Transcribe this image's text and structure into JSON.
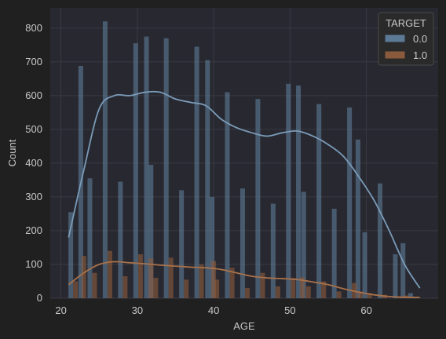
{
  "chart_data": {
    "type": "bar",
    "xlabel": "AGE",
    "ylabel": "Count",
    "xlim": [
      18.6,
      69.4
    ],
    "ylim": [
      0,
      860
    ],
    "x_ticks": [
      20,
      30,
      40,
      50,
      60
    ],
    "y_ticks": [
      0,
      100,
      200,
      300,
      400,
      500,
      600,
      700,
      800
    ],
    "grid": true,
    "legend": {
      "title": "TARGET",
      "placement": "top-right",
      "entries": [
        "0.0",
        "1.0"
      ]
    },
    "bin_centers": [
      21.6,
      24.1,
      26.1,
      28.1,
      30.1,
      32.1,
      34.1,
      36.1,
      38.1,
      40.1,
      42.1,
      44.1,
      46.1,
      48.1,
      50.1,
      52.1,
      54.1,
      56.1,
      58.1,
      60.1,
      62.1,
      64.1,
      66.1
    ],
    "series": [
      {
        "name": "0.0",
        "color": "#5c7a95",
        "values": [
          255,
          355,
          820,
          345,
          755,
          395,
          770,
          320,
          745,
          300,
          610,
          325,
          590,
          280,
          635,
          315,
          575,
          265,
          565,
          195,
          340,
          130,
          15
        ],
        "extra_bars": [
          {
            "x": 22.6,
            "value": 688
          },
          {
            "x": 31.2,
            "value": 775
          },
          {
            "x": 39.2,
            "value": 705
          },
          {
            "x": 51.1,
            "value": 630
          },
          {
            "x": 58.9,
            "value": 470
          },
          {
            "x": 64.8,
            "value": 163
          }
        ],
        "kde": [
          [
            21,
            180
          ],
          [
            23,
            380
          ],
          [
            25,
            560
          ],
          [
            27,
            600
          ],
          [
            29,
            600
          ],
          [
            31,
            610
          ],
          [
            33,
            610
          ],
          [
            35,
            590
          ],
          [
            37,
            580
          ],
          [
            39,
            570
          ],
          [
            41,
            530
          ],
          [
            43,
            505
          ],
          [
            45,
            490
          ],
          [
            47,
            480
          ],
          [
            49,
            490
          ],
          [
            51,
            495
          ],
          [
            53,
            480
          ],
          [
            55,
            455
          ],
          [
            57,
            420
          ],
          [
            59,
            360
          ],
          [
            61,
            290
          ],
          [
            63,
            200
          ],
          [
            65,
            100
          ],
          [
            67,
            30
          ]
        ]
      },
      {
        "name": "1.0",
        "color": "#8a5a3c",
        "values": [
          50,
          75,
          140,
          65,
          130,
          60,
          120,
          55,
          100,
          55,
          90,
          30,
          75,
          35,
          60,
          35,
          50,
          20,
          45,
          15,
          10,
          5,
          3
        ],
        "extra_bars": [
          {
            "x": 23.0,
            "value": 125
          },
          {
            "x": 31.8,
            "value": 118
          },
          {
            "x": 40.0,
            "value": 110
          },
          {
            "x": 51.6,
            "value": 62
          },
          {
            "x": 59.2,
            "value": 20
          },
          {
            "x": 65.2,
            "value": 8
          }
        ],
        "kde": [
          [
            21,
            40
          ],
          [
            23,
            75
          ],
          [
            25,
            100
          ],
          [
            27,
            108
          ],
          [
            29,
            105
          ],
          [
            31,
            102
          ],
          [
            33,
            98
          ],
          [
            35,
            95
          ],
          [
            37,
            92
          ],
          [
            39,
            90
          ],
          [
            41,
            85
          ],
          [
            43,
            75
          ],
          [
            45,
            65
          ],
          [
            47,
            60
          ],
          [
            49,
            58
          ],
          [
            51,
            55
          ],
          [
            53,
            48
          ],
          [
            55,
            40
          ],
          [
            57,
            28
          ],
          [
            59,
            18
          ],
          [
            61,
            10
          ],
          [
            63,
            5
          ],
          [
            65,
            3
          ],
          [
            67,
            2
          ]
        ]
      }
    ]
  }
}
